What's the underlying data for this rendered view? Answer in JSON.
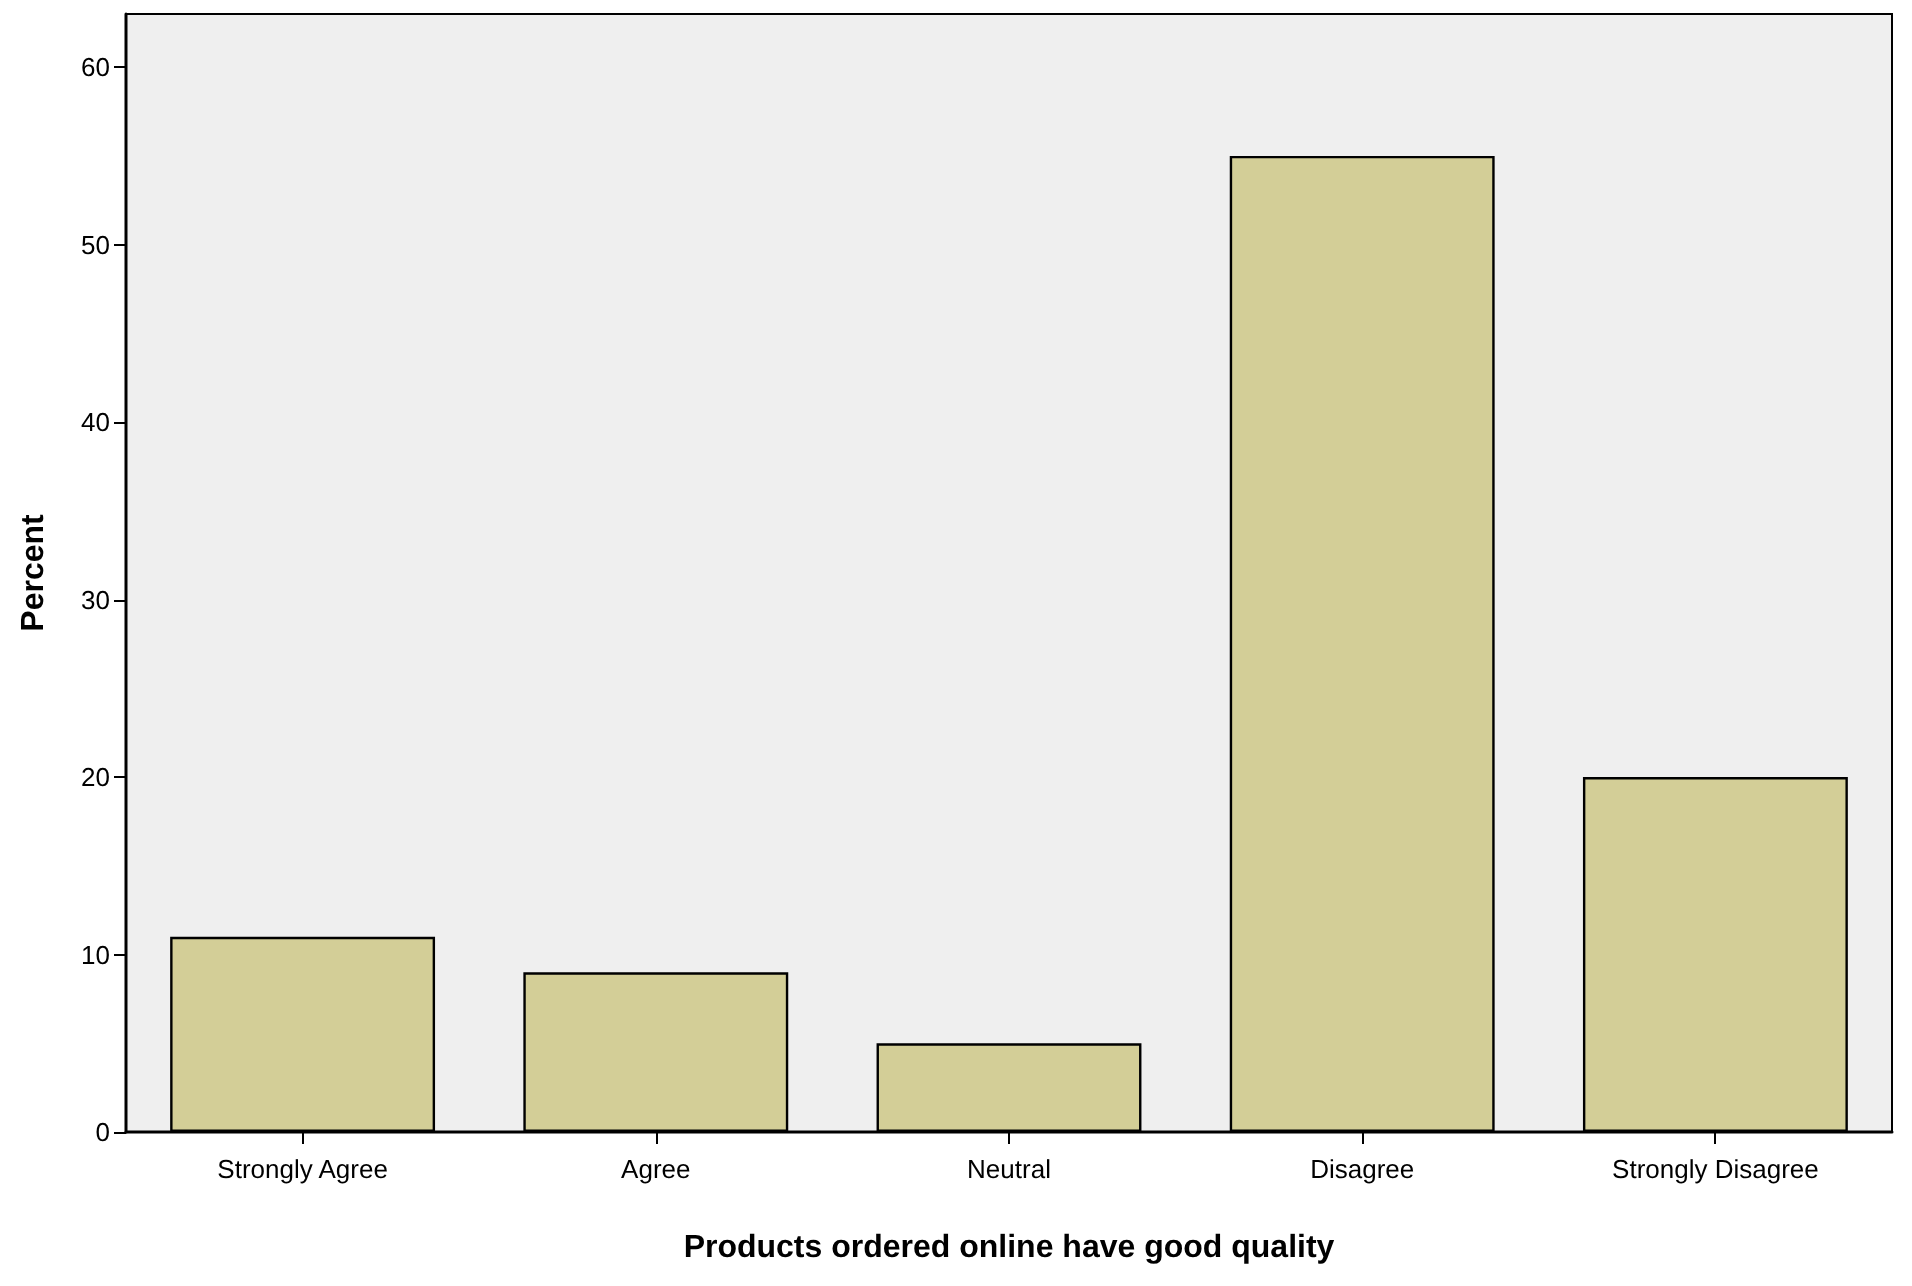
{
  "chart_data": {
    "type": "bar",
    "xlabel": "Products ordered online have good quality",
    "ylabel": "Percent",
    "categories": [
      "Strongly Agree",
      "Agree",
      "Neutral",
      "Disagree",
      "Strongly Disagree"
    ],
    "values": [
      11,
      9,
      5,
      55,
      20
    ],
    "color": "#d3ce97",
    "ylim": [
      0,
      63
    ],
    "yticks": [
      0,
      10,
      20,
      30,
      40,
      50,
      60
    ],
    "grid": false
  }
}
